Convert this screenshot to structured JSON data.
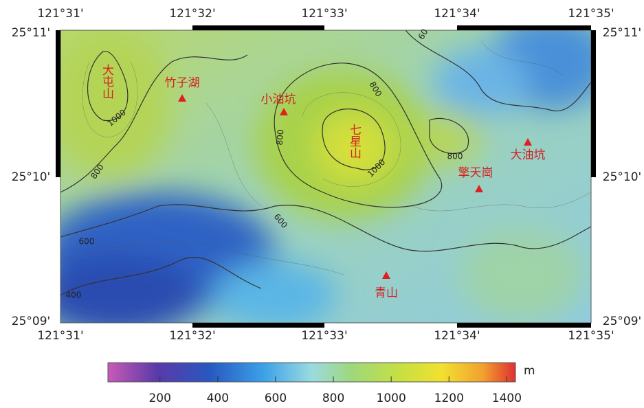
{
  "map": {
    "lon_labels_top": [
      "121°31'",
      "121°32'",
      "121°33'",
      "121°34'",
      "121°35'"
    ],
    "lon_labels_bottom": [
      "121°31'",
      "121°32'",
      "121°33'",
      "121°34'",
      "121°35'"
    ],
    "lat_labels_left": [
      "25°11'",
      "25°10'",
      "25°09'"
    ],
    "lat_labels_right": [
      "25°11'",
      "25°10'",
      "25°09'"
    ],
    "peaks": [
      "大屯山",
      "七星山"
    ],
    "sites": [
      "竹子湖",
      "小油坑",
      "擎天崗",
      "大油坑",
      "青山"
    ],
    "contour_labels": [
      1000,
      800,
      600,
      400,
      800,
      800,
      1000,
      600,
      800,
      60
    ]
  },
  "colorbar": {
    "unit": "m",
    "lim": [
      20,
      1430
    ],
    "ticks": [
      200,
      400,
      600,
      800,
      1000,
      1200,
      1400
    ]
  }
}
